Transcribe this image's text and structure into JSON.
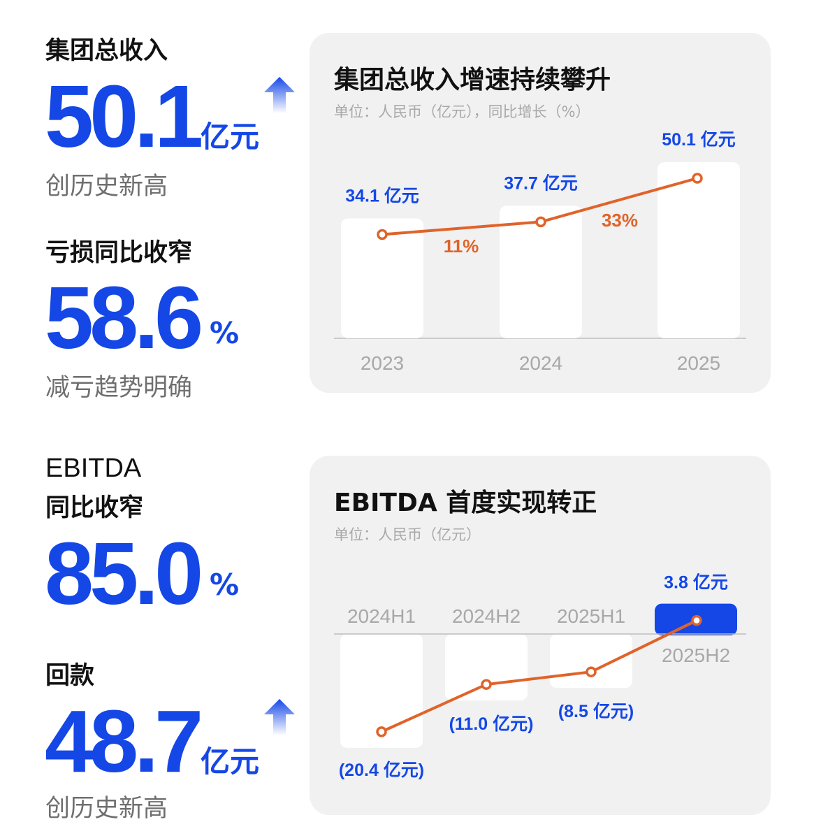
{
  "left": {
    "revenue": {
      "heading": "集团总收入",
      "value": "50.1",
      "unit": "亿元",
      "note": "创历史新高",
      "icon": "up-arrow-icon"
    },
    "loss": {
      "heading": "亏损同比收窄",
      "value": "58.6",
      "unit": "%",
      "note": "减亏趋势明确"
    },
    "ebitda": {
      "heading_line1": "EBITDA",
      "heading_line2": "同比收窄",
      "value": "85.0",
      "unit": "%"
    },
    "collection": {
      "heading": "回款",
      "value": "48.7",
      "unit": "亿元",
      "note": "创历史新高",
      "icon": "up-arrow-icon"
    }
  },
  "colors": {
    "blue": "#1447e6",
    "orange": "#e0632a",
    "bar": "#ffffff",
    "card": "#f1f1f1"
  },
  "chart_data": [
    {
      "type": "bar",
      "title": "集团总收入增速持续攀升",
      "subtitle": "单位：人民币（亿元），同比增长（%）",
      "categories": [
        "2023",
        "2024",
        "2025"
      ],
      "values": [
        34.1,
        37.7,
        50.1
      ],
      "value_labels": [
        "34.1 亿元",
        "37.7 亿元",
        "50.1 亿元"
      ],
      "growth_labels": [
        "11%",
        "33%"
      ],
      "growth": [
        11,
        33
      ],
      "overlay": "line"
    },
    {
      "type": "bar",
      "title": "EBITDA 首度实现转正",
      "subtitle": "单位：人民币（亿元）",
      "categories": [
        "2024H1",
        "2024H2",
        "2025H1",
        "2025H2"
      ],
      "values": [
        -20.4,
        -11.0,
        -8.5,
        3.8
      ],
      "value_labels": [
        "(20.4 亿元)",
        "(11.0 亿元)",
        "(8.5 亿元)",
        "3.8 亿元"
      ],
      "overlay": "line"
    }
  ]
}
